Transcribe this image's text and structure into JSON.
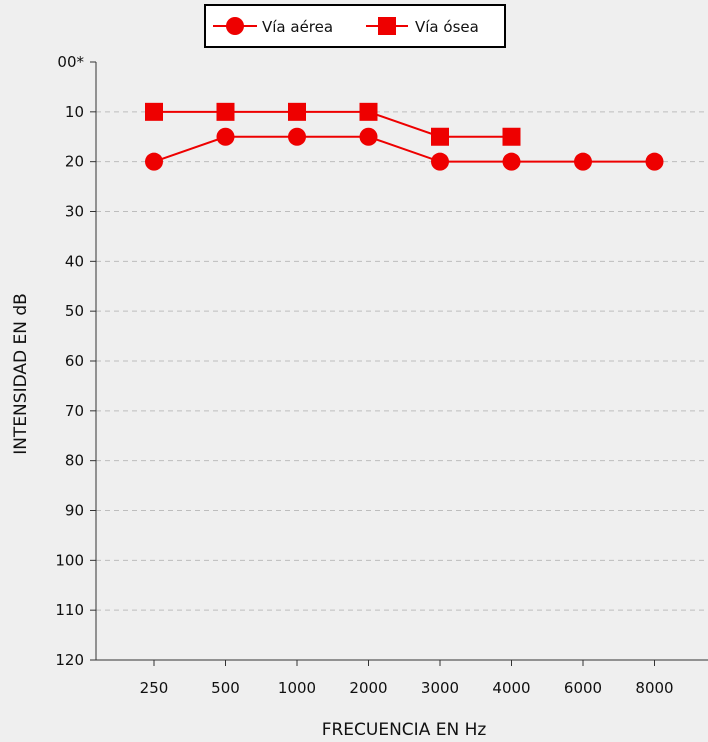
{
  "chart_data": {
    "type": "line",
    "title": "",
    "xlabel": "FRECUENCIA EN Hz",
    "ylabel": "INTENSIDAD EN dB",
    "categories": [
      "250",
      "500",
      "1000",
      "2000",
      "3000",
      "4000",
      "6000",
      "8000"
    ],
    "y_ticks": [
      "00*",
      "10",
      "20",
      "30",
      "40",
      "50",
      "60",
      "70",
      "80",
      "90",
      "100",
      "110",
      "120"
    ],
    "ylim": [
      0,
      120
    ],
    "y_inverted": true,
    "grid": "horizontal-dashed",
    "legend_position": "top-center",
    "series": [
      {
        "name": "Vía aérea",
        "marker": "circle",
        "color": "#ee0000",
        "values": [
          20,
          15,
          15,
          15,
          20,
          20,
          20,
          20
        ]
      },
      {
        "name": "Vía ósea",
        "marker": "square",
        "color": "#ee0000",
        "values": [
          10,
          10,
          10,
          10,
          15,
          15,
          null,
          null
        ]
      }
    ]
  }
}
